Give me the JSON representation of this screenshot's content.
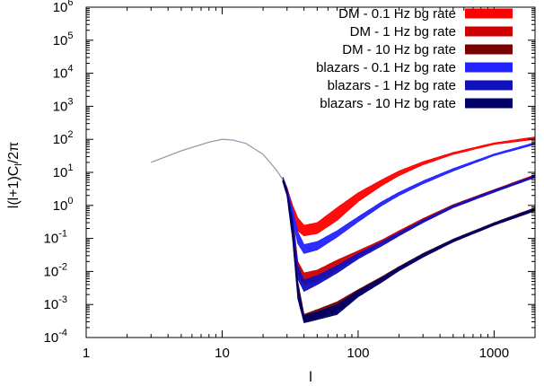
{
  "chart_data": {
    "type": "area",
    "xlabel": "l",
    "ylabel": "l(l+1)C",
    "ylabel_sub": "l",
    "ylabel_tail": "/2π",
    "x_scale": "log",
    "y_scale": "log",
    "xlim": [
      1,
      2000
    ],
    "ylim": [
      0.0001,
      1000000
    ],
    "grid": false,
    "legend_position": "top-right",
    "x_ticks": [
      {
        "value": 1,
        "label": "1"
      },
      {
        "value": 10,
        "label": "10"
      },
      {
        "value": 100,
        "label": "100"
      },
      {
        "value": 1000,
        "label": "1000"
      }
    ],
    "y_ticks": [
      {
        "value": 0.0001,
        "base": "10",
        "exp": "-4"
      },
      {
        "value": 0.001,
        "base": "10",
        "exp": "-3"
      },
      {
        "value": 0.01,
        "base": "10",
        "exp": "-2"
      },
      {
        "value": 0.1,
        "base": "10",
        "exp": "-1"
      },
      {
        "value": 1,
        "base": "10",
        "exp": "0"
      },
      {
        "value": 10,
        "base": "10",
        "exp": "1"
      },
      {
        "value": 100,
        "base": "10",
        "exp": "2"
      },
      {
        "value": 1000,
        "base": "10",
        "exp": "3"
      },
      {
        "value": 10000,
        "base": "10",
        "exp": "4"
      },
      {
        "value": 100000,
        "base": "10",
        "exp": "5"
      },
      {
        "value": 1000000,
        "base": "10",
        "exp": "6"
      }
    ],
    "shared_low_l_curve": {
      "color": "#9a9ab0",
      "points": [
        [
          3,
          20
        ],
        [
          5,
          45
        ],
        [
          8,
          82
        ],
        [
          10,
          100
        ],
        [
          12,
          95
        ],
        [
          15,
          75
        ],
        [
          20,
          35
        ],
        [
          25,
          12
        ],
        [
          28,
          6
        ]
      ]
    },
    "series": [
      {
        "name": "DM - 0.1 Hz bg rate",
        "color": "#ff0000",
        "points": [
          [
            28,
            5,
            7
          ],
          [
            30,
            2.2,
            3.5
          ],
          [
            33,
            0.55,
            1.0
          ],
          [
            36,
            0.17,
            0.42
          ],
          [
            40,
            0.12,
            0.25
          ],
          [
            50,
            0.14,
            0.3
          ],
          [
            70,
            0.35,
            0.85
          ],
          [
            100,
            1.3,
            2.4
          ],
          [
            150,
            4.0,
            6.0
          ],
          [
            200,
            8.0,
            11.0
          ],
          [
            300,
            17,
            21
          ],
          [
            500,
            35,
            40
          ],
          [
            1000,
            70,
            78
          ],
          [
            2000,
            100,
            118
          ]
        ]
      },
      {
        "name": "DM - 1 Hz bg rate",
        "color": "#cc0000",
        "points": [
          [
            28,
            5,
            7
          ],
          [
            30,
            2.0,
            3.2
          ],
          [
            33,
            0.18,
            0.5
          ],
          [
            36,
            0.008,
            0.02
          ],
          [
            40,
            0.004,
            0.009
          ],
          [
            50,
            0.005,
            0.011
          ],
          [
            70,
            0.011,
            0.022
          ],
          [
            100,
            0.028,
            0.042
          ],
          [
            150,
            0.07,
            0.09
          ],
          [
            200,
            0.13,
            0.17
          ],
          [
            300,
            0.32,
            0.4
          ],
          [
            500,
            0.9,
            1.05
          ],
          [
            1000,
            2.6,
            3.0
          ],
          [
            2000,
            7.0,
            8.5
          ]
        ]
      },
      {
        "name": "DM - 10 Hz bg rate",
        "color": "#7a0000",
        "points": [
          [
            28,
            5,
            7
          ],
          [
            30,
            2.0,
            3.0
          ],
          [
            33,
            0.1,
            0.3
          ],
          [
            36,
            0.002,
            0.005
          ],
          [
            40,
            0.0003,
            0.0005
          ],
          [
            50,
            0.0004,
            0.0007
          ],
          [
            70,
            0.0006,
            0.0012
          ],
          [
            100,
            0.0018,
            0.0028
          ],
          [
            150,
            0.005,
            0.007
          ],
          [
            200,
            0.011,
            0.014
          ],
          [
            300,
            0.028,
            0.035
          ],
          [
            500,
            0.08,
            0.095
          ],
          [
            1000,
            0.26,
            0.3
          ],
          [
            2000,
            0.7,
            0.85
          ]
        ]
      },
      {
        "name": "blazars - 0.1 Hz bg rate",
        "color": "#2222ff",
        "points": [
          [
            28,
            5,
            7
          ],
          [
            30,
            2.0,
            3.2
          ],
          [
            33,
            0.35,
            0.75
          ],
          [
            36,
            0.07,
            0.16
          ],
          [
            40,
            0.035,
            0.065
          ],
          [
            50,
            0.045,
            0.08
          ],
          [
            70,
            0.11,
            0.17
          ],
          [
            100,
            0.32,
            0.45
          ],
          [
            150,
            1.0,
            1.3
          ],
          [
            200,
            2.0,
            2.5
          ],
          [
            300,
            4.5,
            5.5
          ],
          [
            500,
            11,
            13
          ],
          [
            1000,
            32,
            36
          ],
          [
            2000,
            70,
            80
          ]
        ]
      },
      {
        "name": "blazars - 1 Hz bg rate",
        "color": "#1111bb",
        "points": [
          [
            28,
            5,
            7
          ],
          [
            30,
            2.0,
            3.0
          ],
          [
            33,
            0.15,
            0.4
          ],
          [
            36,
            0.006,
            0.015
          ],
          [
            40,
            0.0025,
            0.0055
          ],
          [
            50,
            0.004,
            0.0075
          ],
          [
            70,
            0.009,
            0.015
          ],
          [
            100,
            0.024,
            0.035
          ],
          [
            150,
            0.06,
            0.08
          ],
          [
            200,
            0.12,
            0.15
          ],
          [
            300,
            0.3,
            0.36
          ],
          [
            500,
            0.85,
            1.0
          ],
          [
            1000,
            2.5,
            2.9
          ],
          [
            2000,
            7.0,
            8.0
          ]
        ]
      },
      {
        "name": "blazars - 10 Hz bg rate",
        "color": "#000066",
        "points": [
          [
            28,
            5,
            7
          ],
          [
            30,
            2.0,
            3.0
          ],
          [
            33,
            0.09,
            0.28
          ],
          [
            36,
            0.0015,
            0.004
          ],
          [
            40,
            0.00028,
            0.00045
          ],
          [
            50,
            0.00035,
            0.0006
          ],
          [
            70,
            0.0005,
            0.001
          ],
          [
            100,
            0.0017,
            0.0026
          ],
          [
            150,
            0.0048,
            0.0065
          ],
          [
            200,
            0.0105,
            0.0135
          ],
          [
            300,
            0.027,
            0.034
          ],
          [
            500,
            0.078,
            0.092
          ],
          [
            1000,
            0.25,
            0.29
          ],
          [
            2000,
            0.68,
            0.82
          ]
        ]
      }
    ]
  }
}
